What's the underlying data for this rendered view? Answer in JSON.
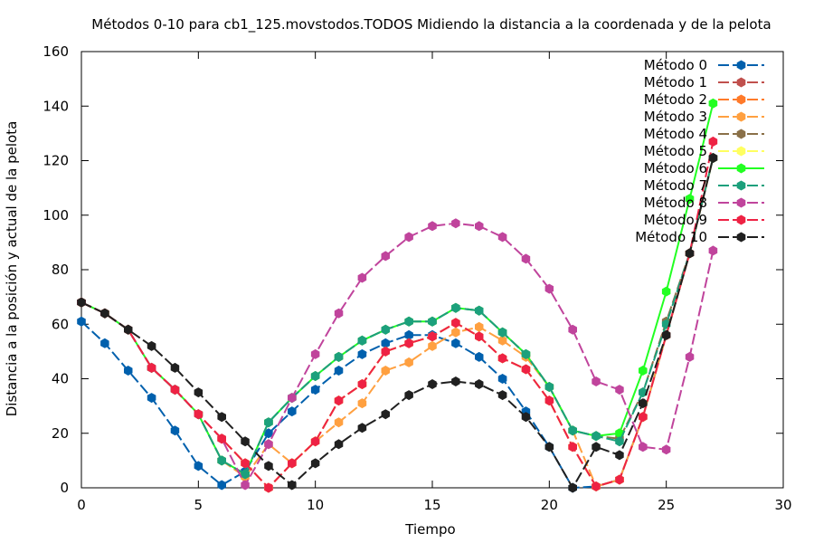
{
  "chart_data": {
    "type": "line",
    "title": "Métodos 0-10 para cb1_125.movstodos.TODOS Midiendo la distancia a la coordenada y de la pelota",
    "xlabel": "Tiempo",
    "ylabel": "Distancia a la posición y actual de la pelota",
    "xlim": [
      0,
      30
    ],
    "ylim": [
      0,
      160
    ],
    "xticks": [
      0,
      5,
      10,
      15,
      20,
      25,
      30
    ],
    "yticks": [
      0,
      20,
      40,
      60,
      80,
      100,
      120,
      140,
      160
    ],
    "grid": false,
    "legend_position": "top-right",
    "x": [
      0,
      1,
      2,
      3,
      4,
      5,
      6,
      7,
      8,
      9,
      10,
      11,
      12,
      13,
      14,
      15,
      16,
      17,
      18,
      19,
      20,
      21,
      22,
      23,
      24,
      25,
      26,
      27
    ],
    "series": [
      {
        "name": "Método 0",
        "color": "#0060ad",
        "values": [
          61,
          53,
          43,
          33,
          21,
          8,
          1,
          6,
          20,
          28,
          36,
          43,
          49,
          53,
          56,
          56,
          53,
          48,
          40,
          28,
          15,
          0,
          0.5,
          3,
          26,
          56,
          86,
          121
        ]
      },
      {
        "name": "Método 1",
        "color": "#c0504d",
        "values": [
          68,
          64,
          58,
          44,
          36,
          27,
          18,
          9,
          0,
          9,
          17,
          32,
          38,
          50,
          53,
          55.5,
          60.5,
          55.5,
          47.5,
          43.5,
          32,
          15,
          0.5,
          3,
          26,
          56,
          86,
          121
        ]
      },
      {
        "name": "Método 2",
        "color": "#ff7a2a",
        "values": [
          68,
          64,
          58,
          44,
          36,
          27,
          18,
          9,
          0,
          9,
          17,
          32,
          38,
          50,
          53,
          55.5,
          60.5,
          55.5,
          47.5,
          43.5,
          32,
          15,
          0.5,
          3,
          26,
          56,
          86,
          121
        ]
      },
      {
        "name": "Método 3",
        "color": "#ffa040",
        "values": [
          68,
          64,
          58,
          44,
          36,
          27,
          10,
          4,
          16,
          9,
          17,
          24,
          31,
          43,
          46,
          52,
          57,
          59,
          54,
          48,
          37,
          21,
          0.5,
          3,
          26,
          56,
          86,
          121
        ]
      },
      {
        "name": "Método 4",
        "color": "#8a7048",
        "values": [
          68,
          64,
          58,
          44,
          36,
          27,
          10,
          5,
          24,
          33,
          41,
          48,
          54,
          58,
          61,
          61,
          66,
          65,
          57,
          49,
          37,
          21,
          19,
          18,
          35,
          61,
          86,
          121
        ]
      },
      {
        "name": "Método 5",
        "color": "#ffff60",
        "values": [
          68,
          64,
          58,
          44,
          36,
          27,
          18,
          9,
          0,
          9,
          17,
          32,
          38,
          50,
          53,
          55.5,
          60.5,
          55.5,
          47.5,
          43.5,
          32,
          15,
          0.5,
          3,
          26,
          56,
          86,
          121
        ]
      },
      {
        "name": "Método 6",
        "color": "#22ff22",
        "values": [
          68,
          64,
          58,
          44,
          36,
          27,
          10,
          5,
          24,
          33,
          41,
          48,
          54,
          58,
          61,
          61,
          66,
          65,
          57,
          49,
          37,
          21,
          19,
          20,
          43,
          72,
          106,
          141
        ]
      },
      {
        "name": "Método 7",
        "color": "#1ca07c",
        "values": [
          68,
          64,
          58,
          44,
          36,
          27,
          10,
          5,
          24,
          33,
          41,
          48,
          54,
          58,
          61,
          61,
          66,
          65,
          57,
          49,
          37,
          21,
          19,
          17,
          35,
          60,
          86,
          121
        ]
      },
      {
        "name": "Método 8",
        "color": "#c0449c",
        "values": [
          68,
          64,
          58,
          44,
          36,
          27,
          18,
          1,
          16,
          33,
          49,
          64,
          77,
          85,
          92,
          96,
          97,
          96,
          92,
          84,
          73,
          58,
          39,
          36,
          15,
          14,
          48,
          87
        ]
      },
      {
        "name": "Método 9",
        "color": "#ee2244",
        "values": [
          68,
          64,
          58,
          44,
          36,
          27,
          18,
          9,
          0,
          9,
          17,
          32,
          38,
          50,
          53,
          55.5,
          60.5,
          55.5,
          47.5,
          43.5,
          32,
          15,
          0.5,
          3,
          26,
          56,
          86,
          127
        ]
      },
      {
        "name": "Método 10",
        "color": "#202020",
        "values": [
          68,
          64,
          58,
          52,
          44,
          35,
          26,
          17,
          8,
          1,
          9,
          16,
          22,
          27,
          34,
          38,
          39,
          38,
          34,
          26,
          15,
          0,
          15,
          12,
          31,
          56,
          86,
          121
        ]
      }
    ]
  }
}
